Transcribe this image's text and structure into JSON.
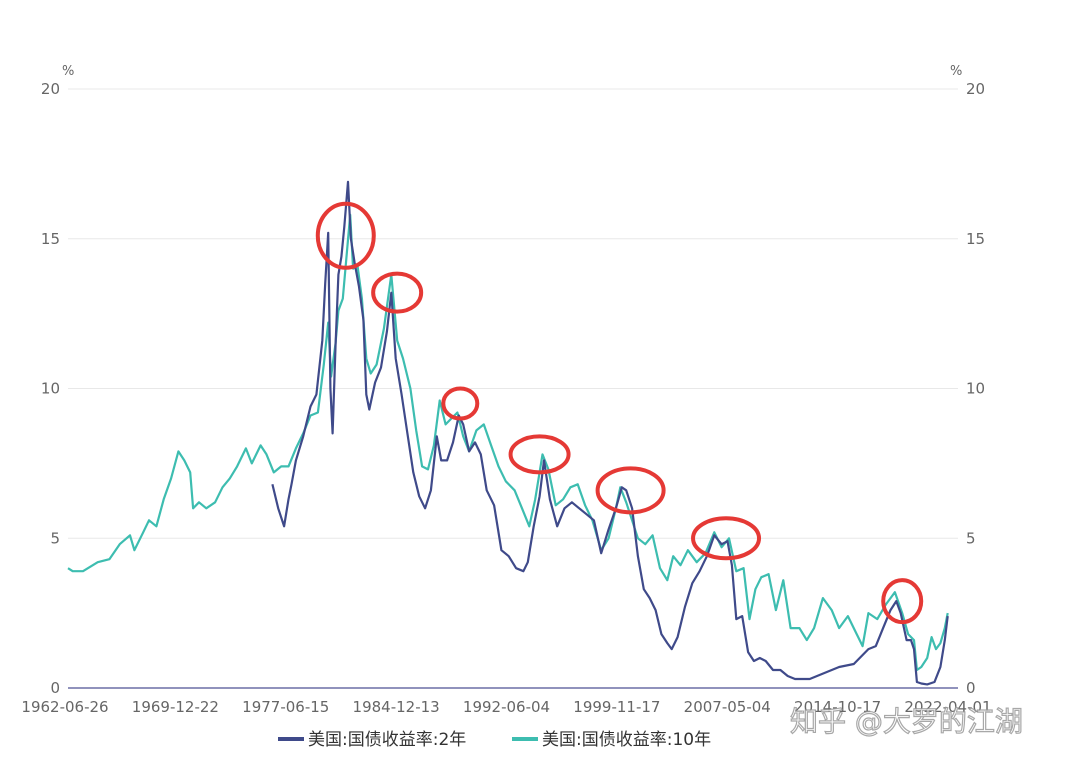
{
  "chart_data": {
    "type": "line",
    "title": "",
    "left_axis_unit": "%",
    "right_axis_unit": "%",
    "ylim": [
      0,
      20
    ],
    "y_ticks": [
      "0",
      "5",
      "10",
      "15",
      "20"
    ],
    "x_tick_labels": [
      "1962-06-26",
      "1969-12-22",
      "1977-06-15",
      "1984-12-13",
      "1992-06-04",
      "1999-11-17",
      "2007-05-04",
      "2014-10-17",
      "2022-04-01"
    ],
    "x_range": [
      1962.48,
      2023.1
    ],
    "series": [
      {
        "name": "美国:国债收益率:2年",
        "color": "#3f4a8a",
        "x": [
          1976.4,
          1976.8,
          1977.2,
          1977.5,
          1977.7,
          1978.0,
          1978.5,
          1979.0,
          1979.4,
          1979.8,
          1980.0,
          1980.2,
          1980.35,
          1980.5,
          1980.7,
          1980.9,
          1981.1,
          1981.3,
          1981.55,
          1981.75,
          1982.0,
          1982.3,
          1982.6,
          1982.8,
          1983.0,
          1983.4,
          1983.8,
          1984.2,
          1984.5,
          1984.8,
          1985.2,
          1985.6,
          1986.0,
          1986.4,
          1986.8,
          1987.2,
          1987.6,
          1987.9,
          1988.3,
          1988.7,
          1989.1,
          1989.4,
          1989.8,
          1990.2,
          1990.6,
          1991.0,
          1991.5,
          1992.0,
          1992.5,
          1993.0,
          1993.5,
          1993.8,
          1994.2,
          1994.6,
          1994.9,
          1995.3,
          1995.8,
          1996.3,
          1996.8,
          1997.3,
          1997.8,
          1998.3,
          1998.8,
          1999.3,
          1999.8,
          2000.2,
          2000.5,
          2000.9,
          2001.3,
          2001.7,
          2002.1,
          2002.5,
          2002.9,
          2003.3,
          2003.6,
          2004.0,
          2004.5,
          2005.0,
          2005.5,
          2006.0,
          2006.5,
          2007.0,
          2007.4,
          2007.7,
          2008.0,
          2008.4,
          2008.8,
          2009.2,
          2009.6,
          2010.0,
          2010.5,
          2011.0,
          2011.5,
          2012.0,
          2013.0,
          2014.0,
          2015.0,
          2016.0,
          2017.0,
          2017.5,
          2018.0,
          2018.5,
          2018.9,
          2019.2,
          2019.6,
          2019.9,
          2020.1,
          2020.3,
          2020.6,
          2021.0,
          2021.5,
          2021.9,
          2022.2,
          2022.4
        ],
        "values": [
          6.8,
          6.0,
          5.4,
          6.3,
          6.8,
          7.6,
          8.4,
          9.4,
          9.8,
          11.6,
          13.5,
          15.2,
          10.0,
          8.5,
          11.4,
          13.8,
          14.4,
          15.4,
          16.9,
          15.0,
          14.2,
          13.4,
          12.3,
          9.8,
          9.3,
          10.2,
          10.7,
          11.9,
          13.2,
          11.0,
          9.8,
          8.5,
          7.2,
          6.4,
          6.0,
          6.6,
          8.4,
          7.6,
          7.6,
          8.2,
          9.1,
          8.8,
          7.9,
          8.2,
          7.8,
          6.6,
          6.1,
          4.6,
          4.4,
          4.0,
          3.9,
          4.2,
          5.4,
          6.4,
          7.6,
          6.3,
          5.4,
          6.0,
          6.2,
          6.0,
          5.8,
          5.6,
          4.5,
          5.3,
          6.0,
          6.7,
          6.6,
          6.0,
          4.4,
          3.3,
          3.0,
          2.6,
          1.8,
          1.5,
          1.3,
          1.7,
          2.7,
          3.5,
          3.9,
          4.4,
          5.1,
          4.8,
          4.9,
          4.1,
          2.3,
          2.4,
          1.2,
          0.9,
          1.0,
          0.9,
          0.6,
          0.6,
          0.4,
          0.3,
          0.3,
          0.5,
          0.7,
          0.8,
          1.3,
          1.4,
          2.0,
          2.6,
          2.9,
          2.5,
          1.6,
          1.6,
          1.3,
          0.2,
          0.15,
          0.12,
          0.2,
          0.7,
          1.6,
          2.4
        ]
      },
      {
        "name": "美国:国债收益率:10年",
        "color": "#3dbdb0",
        "x": [
          1962.48,
          1962.8,
          1963.5,
          1964.5,
          1965.3,
          1966.0,
          1966.7,
          1967.0,
          1967.6,
          1968.0,
          1968.5,
          1969.0,
          1969.5,
          1970.0,
          1970.4,
          1970.8,
          1971.0,
          1971.4,
          1971.9,
          1972.5,
          1973.0,
          1973.5,
          1974.0,
          1974.6,
          1975.0,
          1975.6,
          1976.0,
          1976.5,
          1977.0,
          1977.5,
          1978.0,
          1978.5,
          1979.0,
          1979.5,
          1979.9,
          1980.2,
          1980.4,
          1980.7,
          1980.9,
          1981.2,
          1981.7,
          1981.9,
          1982.2,
          1982.5,
          1982.8,
          1983.1,
          1983.5,
          1984.0,
          1984.5,
          1984.9,
          1985.3,
          1985.8,
          1986.2,
          1986.6,
          1987.0,
          1987.4,
          1987.8,
          1988.2,
          1988.6,
          1989.0,
          1989.4,
          1989.8,
          1990.3,
          1990.8,
          1991.3,
          1991.8,
          1992.3,
          1992.9,
          1993.4,
          1993.9,
          1994.3,
          1994.8,
          1995.2,
          1995.7,
          1996.2,
          1996.7,
          1997.2,
          1997.7,
          1998.2,
          1998.8,
          1999.3,
          1999.8,
          2000.1,
          2000.5,
          2000.9,
          2001.3,
          2001.8,
          2002.3,
          2002.8,
          2003.3,
          2003.7,
          2004.2,
          2004.7,
          2005.3,
          2005.9,
          2006.5,
          2007.0,
          2007.5,
          2008.0,
          2008.5,
          2008.9,
          2009.3,
          2009.7,
          2010.2,
          2010.7,
          2011.2,
          2011.7,
          2012.3,
          2012.8,
          2013.3,
          2013.9,
          2014.5,
          2015.0,
          2015.6,
          2016.2,
          2016.6,
          2017.0,
          2017.6,
          2018.2,
          2018.8,
          2019.3,
          2019.7,
          2020.1,
          2020.3,
          2020.6,
          2021.0,
          2021.3,
          2021.6,
          2021.9,
          2022.2,
          2022.4
        ],
        "values": [
          4.0,
          3.9,
          3.9,
          4.2,
          4.3,
          4.8,
          5.1,
          4.6,
          5.2,
          5.6,
          5.4,
          6.3,
          7.0,
          7.9,
          7.6,
          7.2,
          6.0,
          6.2,
          6.0,
          6.2,
          6.7,
          7.0,
          7.4,
          8.0,
          7.5,
          8.1,
          7.8,
          7.2,
          7.4,
          7.4,
          8.0,
          8.5,
          9.1,
          9.2,
          10.8,
          12.2,
          10.4,
          11.5,
          12.6,
          13.0,
          15.8,
          14.0,
          14.1,
          13.0,
          11.0,
          10.5,
          10.8,
          12.0,
          13.8,
          11.6,
          11.0,
          10.0,
          8.6,
          7.4,
          7.3,
          8.1,
          9.6,
          8.8,
          9.0,
          9.2,
          8.4,
          7.9,
          8.6,
          8.8,
          8.1,
          7.4,
          6.9,
          6.6,
          6.0,
          5.4,
          6.3,
          7.8,
          7.3,
          6.1,
          6.3,
          6.7,
          6.8,
          6.1,
          5.6,
          4.6,
          5.0,
          6.0,
          6.7,
          6.2,
          5.6,
          5.0,
          4.8,
          5.1,
          4.0,
          3.6,
          4.4,
          4.1,
          4.6,
          4.2,
          4.5,
          5.2,
          4.7,
          5.0,
          3.9,
          4.0,
          2.3,
          3.3,
          3.7,
          3.8,
          2.6,
          3.6,
          2.0,
          2.0,
          1.6,
          2.0,
          3.0,
          2.6,
          2.0,
          2.4,
          1.8,
          1.4,
          2.5,
          2.3,
          2.8,
          3.2,
          2.5,
          1.8,
          1.6,
          0.6,
          0.7,
          1.0,
          1.7,
          1.3,
          1.5,
          2.0,
          2.5
        ]
      }
    ],
    "annotations": [
      {
        "type": "circle",
        "x": 1981.4,
        "y": 15.1
      },
      {
        "type": "circle",
        "x": 1984.9,
        "y": 13.2
      },
      {
        "type": "circle",
        "x": 1989.2,
        "y": 9.5
      },
      {
        "type": "circle",
        "x": 1994.6,
        "y": 7.8
      },
      {
        "type": "circle",
        "x": 2000.8,
        "y": 6.6
      },
      {
        "type": "circle",
        "x": 2007.3,
        "y": 5.0
      },
      {
        "type": "circle",
        "x": 2019.3,
        "y": 2.9
      }
    ]
  },
  "watermark": "知乎 @大罗的江湖"
}
